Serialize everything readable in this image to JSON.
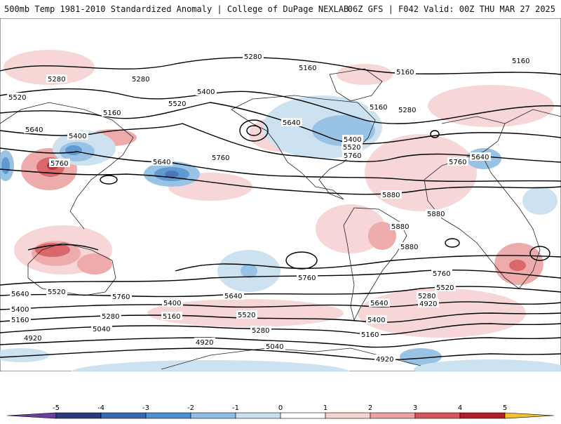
{
  "header": {
    "title_left": "500mb Temp 1981-2010 Standardized Anomaly | College of DuPage NEXLAB",
    "title_right": "06Z GFS | F042 Valid: 00Z THU MAR 27 2025"
  },
  "contour_labels": [
    "5280",
    "5160",
    "5400",
    "5520",
    "5640",
    "5760",
    "5880",
    "5040",
    "4920"
  ],
  "colorbar": {
    "ticks": [
      "-5",
      "-4",
      "-3",
      "-2",
      "-1",
      "0",
      "1",
      "2",
      "3",
      "4",
      "5"
    ],
    "colors": [
      "#6a3fa0",
      "#2a3a7a",
      "#3a68b0",
      "#4f90cf",
      "#8fbde3",
      "#c8dff0",
      "#ffffff",
      "#f6d2d2",
      "#eca2a2",
      "#d5575b",
      "#b01e26",
      "#6b0c10",
      "#f2c230"
    ]
  }
}
